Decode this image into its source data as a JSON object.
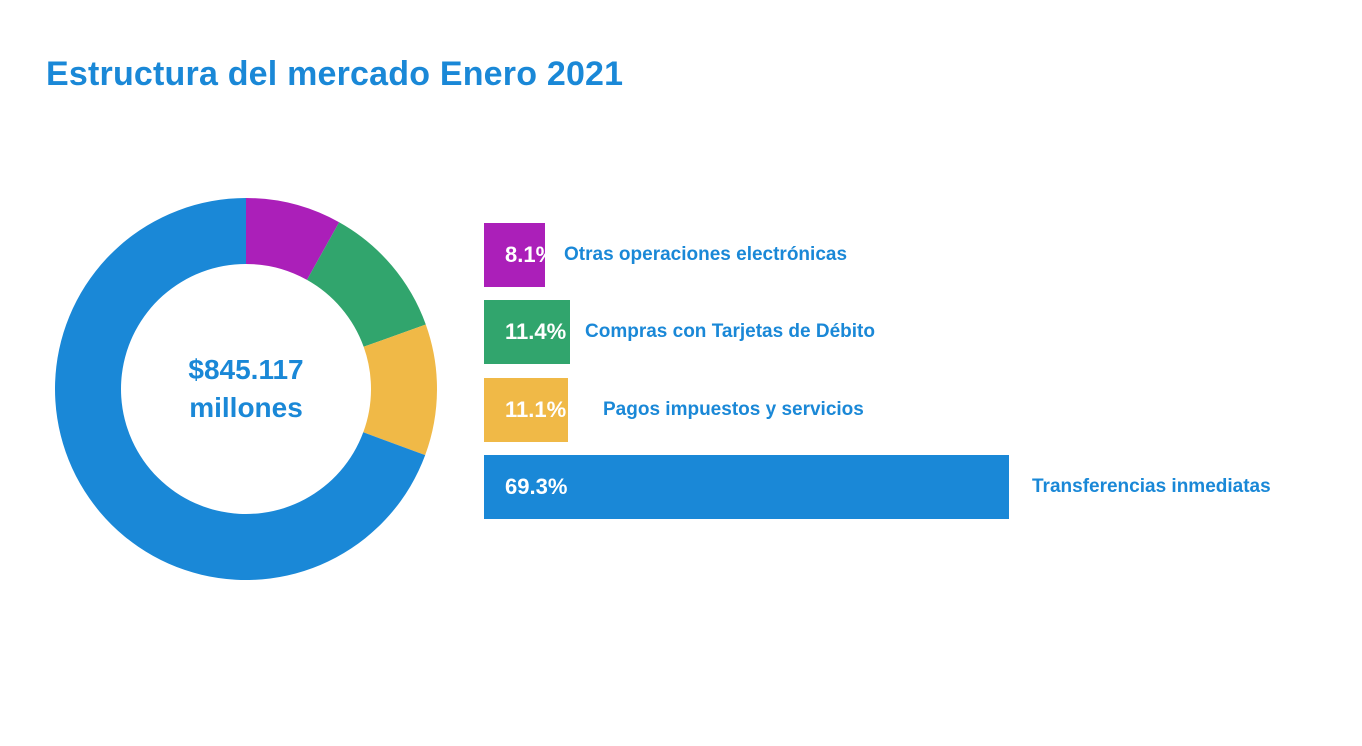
{
  "title": "Estructura del mercado Enero 2021",
  "center": {
    "amount": "$845.117",
    "unit": "millones"
  },
  "chart_data": {
    "type": "pie",
    "title": "Estructura del mercado Enero 2021",
    "total_label": "$845.117 millones",
    "unit": "%",
    "categories": [
      "Otras operaciones electrónicas",
      "Compras con Tarjetas de Débito",
      "Pagos impuestos y servicios",
      "Transferencias inmediatas"
    ],
    "values": [
      8.1,
      11.4,
      11.1,
      69.3
    ],
    "value_labels": [
      "8.1%",
      "11.4%",
      "11.1%",
      "69.3%"
    ],
    "colors": [
      "#ab1fb9",
      "#31a56d",
      "#f0b947",
      "#1a88d7"
    ],
    "bar_max": 69.3
  }
}
